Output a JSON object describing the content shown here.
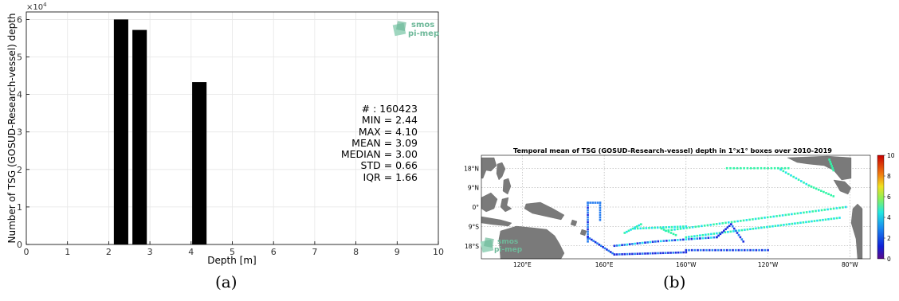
{
  "chart_data": [
    {
      "type": "bar",
      "panel": "(a)",
      "xlabel": "Depth [m]",
      "ylabel": "Number of TSG (GOSUD-Research-vessel) depth",
      "y_multiplier": "×10",
      "y_multiplier_exp": "4",
      "xlim": [
        0,
        10
      ],
      "ylim": [
        0,
        6.2
      ],
      "xticks": [
        "0",
        "1",
        "2",
        "3",
        "4",
        "5",
        "6",
        "7",
        "8",
        "9",
        "10"
      ],
      "yticks": [
        "0",
        "1",
        "2",
        "3",
        "4",
        "5",
        "6"
      ],
      "grid": true,
      "bar_width": 0.35,
      "bars": [
        {
          "x": 2.3,
          "value": 6.0
        },
        {
          "x": 2.75,
          "value": 5.72
        },
        {
          "x": 4.2,
          "value": 4.33
        }
      ],
      "stats": [
        "# : 160423",
        "MIN = 2.44",
        "MAX =  4.10",
        "MEAN = 3.09",
        "MEDIAN = 3.00",
        "STD = 0.66",
        "IQR = 1.66"
      ],
      "bar_color": "#000000"
    },
    {
      "type": "heatmap",
      "panel": "(b)",
      "title": "Temporal mean of TSG (GOSUD-Research-vessel) depth in 1°x1° boxes over 2010-2019",
      "lon_ticks": [
        "120°E",
        "160°E",
        "160°W",
        "120°W",
        "80°W"
      ],
      "lat_ticks": [
        "18°N",
        "9°N",
        "0°",
        "9°S",
        "18°S"
      ],
      "colorbar_ticks": [
        "0",
        "2",
        "4",
        "6",
        "8",
        "10"
      ],
      "colorbar_range": [
        0,
        10
      ],
      "land_color": "#7a7a7a",
      "track_colors": [
        "#1e2fe0",
        "#2a7ff0",
        "#22e0f0",
        "#33f5a8"
      ]
    }
  ],
  "logo": {
    "line1": "smos",
    "line2": "pi-mep",
    "color": "#6fb99a"
  },
  "captions": {
    "a": "(a)",
    "b": "(b)"
  }
}
